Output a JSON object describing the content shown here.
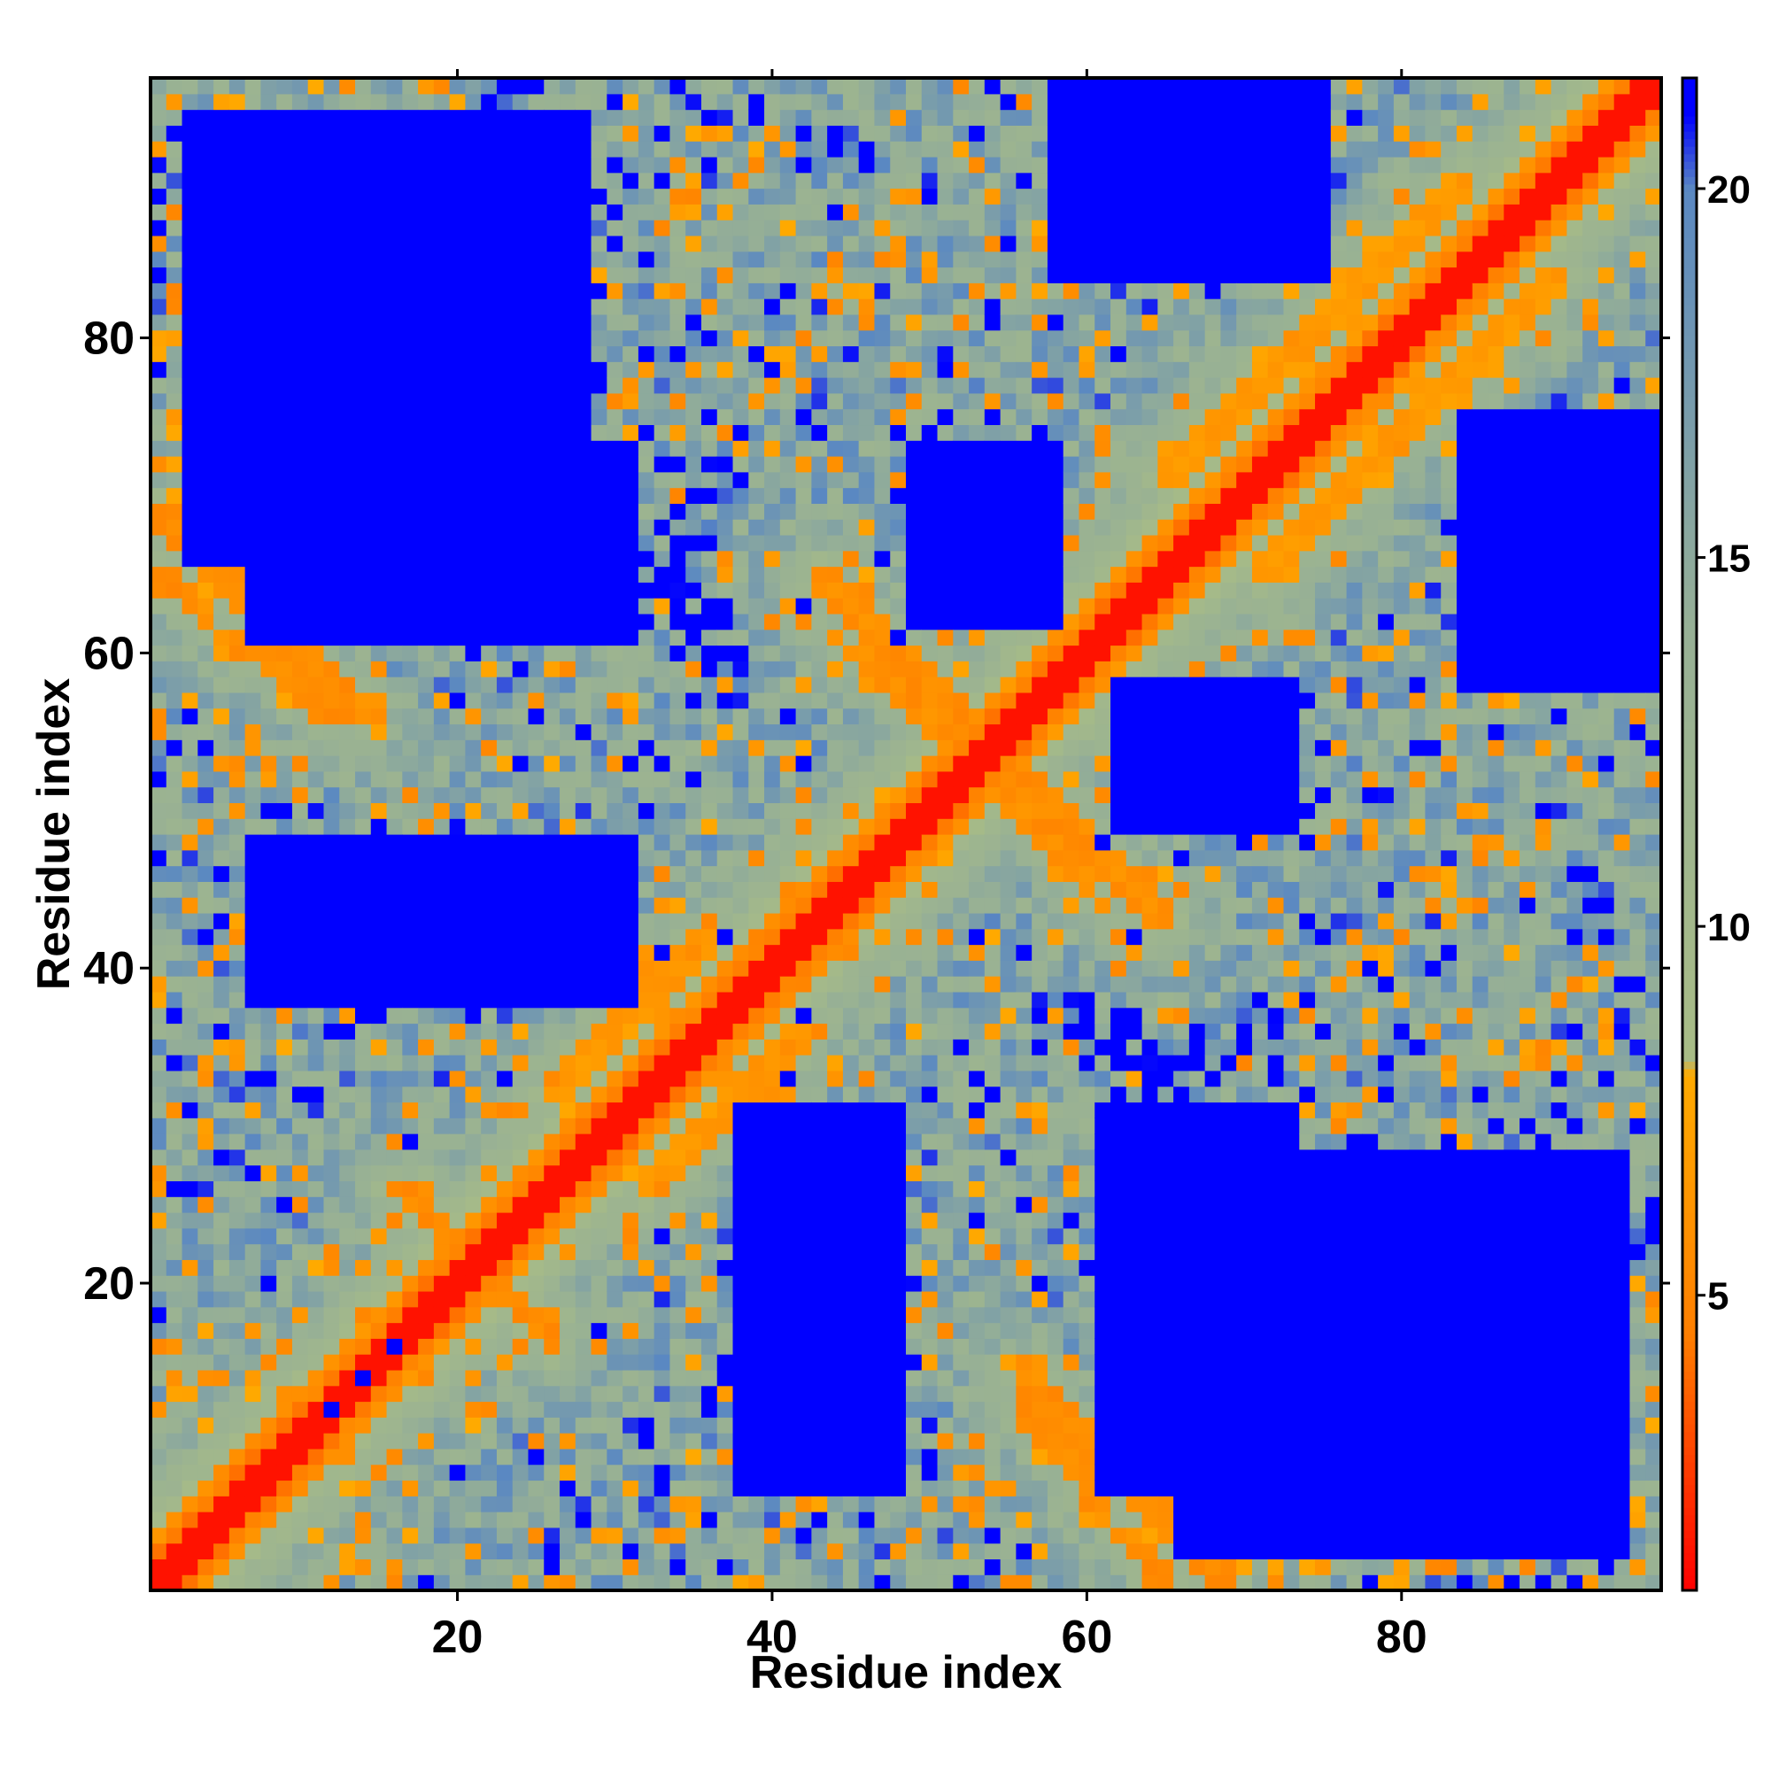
{
  "chart_data": {
    "type": "heatmap",
    "description_kind": "residue contact distance map",
    "xlabel": "Residue index",
    "ylabel": "Residue index",
    "n_residues": 96,
    "xlim": [
      0.5,
      96.5
    ],
    "ylim": [
      0.5,
      96.5
    ],
    "x_ticks": [
      20,
      40,
      60,
      80
    ],
    "y_ticks": [
      20,
      40,
      60,
      80
    ],
    "x_tick_labels": [
      "20",
      "40",
      "60",
      "80"
    ],
    "y_tick_labels": [
      "20",
      "40",
      "60",
      "80"
    ],
    "colorbar": {
      "range": [
        1,
        21.5
      ],
      "ticks": [
        5,
        10,
        15,
        20
      ],
      "tick_labels": [
        "5",
        "10",
        "15",
        "20"
      ],
      "colors": [
        {
          "value": 1.0,
          "color": "#ff0000"
        },
        {
          "value": 4.5,
          "color": "#ff7f00"
        },
        {
          "value": 8.0,
          "color": "#ffaa00"
        },
        {
          "value": 8.2,
          "color": "#a8bc86"
        },
        {
          "value": 14.0,
          "color": "#97b095"
        },
        {
          "value": 20.0,
          "color": "#5a88c2"
        },
        {
          "value": 21.0,
          "color": "#0000ff"
        }
      ]
    },
    "background_value": 21.5,
    "cutoff_value": 21,
    "grid": false,
    "features": {
      "diagonal_band": {
        "from": [
          1,
          1
        ],
        "to": [
          96,
          96
        ],
        "core_value": 2,
        "orange_halfwidth": 3,
        "green_halfwidth": 8
      },
      "anti_diagonal_contacts": [
        {
          "from": [
            17,
            26
          ],
          "to": [
            26,
            16
          ],
          "value": 5
        },
        {
          "from": [
            44,
            62
          ],
          "to": [
            52,
            54
          ],
          "value": 5
        },
        {
          "from": [
            56,
            52
          ],
          "to": [
            65,
            43
          ],
          "value": 5
        },
        {
          "from": [
            56,
            14
          ],
          "to": [
            69,
            1
          ],
          "value": 5
        },
        {
          "from": [
            1,
            65
          ],
          "to": [
            12,
            56
          ],
          "value": 5
        },
        {
          "from": [
            8,
            92
          ],
          "to": [
            12,
            84
          ],
          "value": 5
        },
        {
          "from": [
            84,
            12
          ],
          "to": [
            92,
            8
          ],
          "value": 5
        }
      ],
      "parallel_contacts": [
        {
          "from": [
            26,
            32
          ],
          "to": [
            36,
            42
          ],
          "value": 6
        },
        {
          "from": [
            42,
            36
          ],
          "to": [
            32,
            26
          ],
          "value": 6
        },
        {
          "from": [
            65,
            71
          ],
          "to": [
            84,
            90
          ],
          "value": 6
        },
        {
          "from": [
            71,
            65
          ],
          "to": [
            90,
            84
          ],
          "value": 6
        }
      ],
      "far_regions_blue": [
        {
          "x": [
            7,
            37
          ],
          "y": [
            61,
            73
          ]
        },
        {
          "x": [
            7,
            31
          ],
          "y": [
            38,
            48
          ]
        },
        {
          "x": [
            61,
            73
          ],
          "y": [
            7,
            31
          ]
        },
        {
          "x": [
            38,
            48
          ],
          "y": [
            7,
            31
          ]
        },
        {
          "x": [
            49,
            58
          ],
          "y": [
            62,
            73
          ]
        },
        {
          "x": [
            62,
            73
          ],
          "y": [
            49,
            58
          ]
        },
        {
          "x": [
            66,
            94
          ],
          "y": [
            3,
            28
          ]
        },
        {
          "x": [
            3,
            28
          ],
          "y": [
            66,
            94
          ]
        },
        {
          "x": [
            84,
            96
          ],
          "y": [
            58,
            75
          ]
        },
        {
          "x": [
            58,
            75
          ],
          "y": [
            84,
            96
          ]
        }
      ]
    }
  }
}
